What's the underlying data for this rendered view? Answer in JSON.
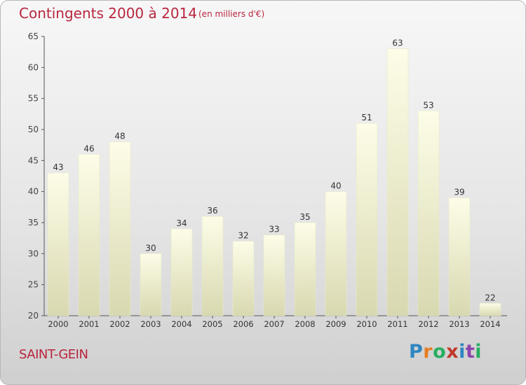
{
  "header": {
    "title": "Contingents 2000 à 2014",
    "subtitle": "(en milliers d'€)"
  },
  "footer": {
    "commune": "SAINT-GEIN",
    "brand": "Proxiti"
  },
  "colors": {
    "title": "#b8263f",
    "bar_top": "#fdfde6",
    "bar_bottom": "#d9d9b3"
  },
  "chart_data": {
    "type": "bar",
    "title": "Contingents 2000 à 2014",
    "subtitle": "(en milliers d'€)",
    "xlabel": "",
    "ylabel": "",
    "categories": [
      "2000",
      "2001",
      "2002",
      "2003",
      "2004",
      "2005",
      "2006",
      "2007",
      "2008",
      "2009",
      "2010",
      "2011",
      "2012",
      "2013",
      "2014"
    ],
    "values": [
      43,
      46,
      48,
      30,
      34,
      36,
      32,
      33,
      35,
      40,
      51,
      63,
      53,
      39,
      22
    ],
    "ylim": [
      20,
      65
    ],
    "yticks": [
      20,
      25,
      30,
      35,
      40,
      45,
      50,
      55,
      60,
      65
    ],
    "grid": false,
    "legend": "none"
  }
}
